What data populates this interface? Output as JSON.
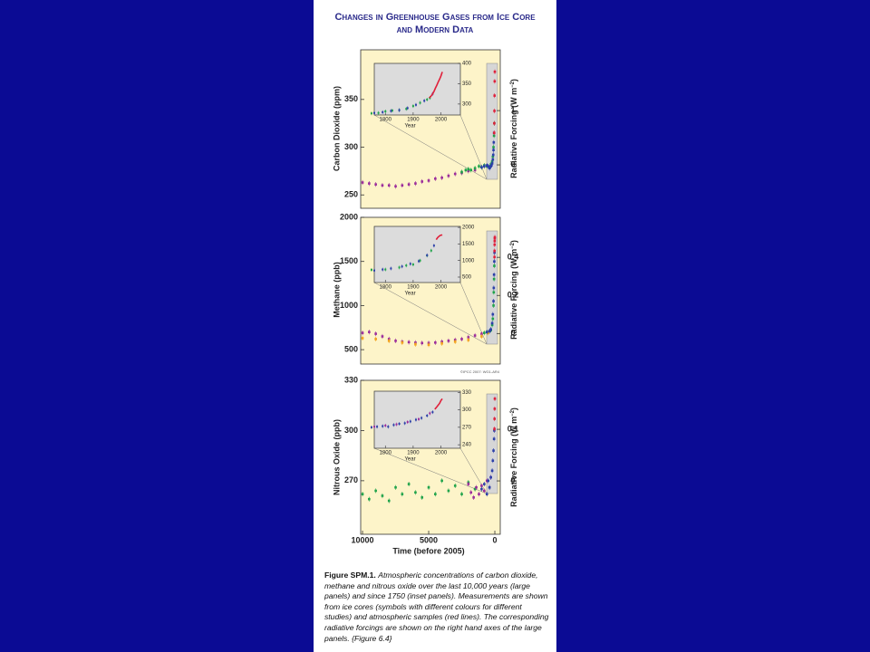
{
  "title_lines": [
    "Changes in Greenhouse Gases from Ice Core",
    "and Modern Data"
  ],
  "credit": "©IPCC 2007: WG1-AR4",
  "caption": {
    "label": "Figure SPM.1.",
    "text": "Atmospheric concentrations of carbon dioxide, methane and nitrous oxide over the last 10,000 years (large panels) and since 1750 (inset panels). Measurements are shown from ice cores (symbols with different colours for different studies) and atmospheric samples (red lines). The corresponding radiative forcings are shown on the right hand axes of the large panels.",
    "ref": "{Figure 6.4}"
  },
  "chart_data": [
    {
      "type": "scatter",
      "ylabel": "Carbon Dioxide (ppm)",
      "y2label": [
        "Radiative Forcing (W m",
        "−2",
        ")"
      ],
      "xlim": [
        10140,
        -410
      ],
      "ylim": [
        236,
        402
      ],
      "yticks": [
        250,
        300,
        350
      ],
      "y2lim": [
        -0.8,
        2.12
      ],
      "y2ticks": [
        0,
        1
      ],
      "series": [
        {
          "color": "#9b2c9b",
          "x": [
            10000,
            9500,
            9000,
            8500,
            8000,
            7500,
            7000,
            6500,
            6000,
            5500,
            5000,
            4500,
            4000,
            3500,
            3000,
            2500,
            2000,
            1500
          ],
          "values": [
            263,
            262,
            261,
            260,
            260,
            259,
            260,
            261,
            262,
            264,
            265,
            267,
            268,
            270,
            272,
            273,
            275,
            276
          ]
        },
        {
          "color": "#1fa34a",
          "x": [
            2500,
            2200,
            2000,
            1800,
            1500,
            1200,
            1000,
            800,
            600,
            400,
            300,
            200,
            150,
            100,
            60,
            40
          ],
          "values": [
            274,
            276,
            277,
            276,
            278,
            280,
            279,
            281,
            280,
            279,
            282,
            285,
            290,
            300,
            312,
            325
          ]
        },
        {
          "color": "#2b3fa8",
          "x": [
            1000,
            800,
            600,
            500,
            400,
            300,
            250,
            200,
            150,
            120,
            100,
            80,
            60
          ],
          "values": [
            279,
            280,
            281,
            280,
            278,
            280,
            281,
            283,
            287,
            292,
            297,
            305,
            315
          ]
        },
        {
          "color": "#e0203a",
          "x": [
            47,
            40,
            30,
            20,
            10,
            0
          ],
          "values": [
            315,
            325,
            338,
            354,
            369,
            379
          ]
        }
      ],
      "inset": {
        "type": "scatter",
        "xlabel": "Year",
        "xlim": [
          1760,
          2070
        ],
        "ylim": [
          273,
          400
        ],
        "xticks": [
          1800,
          1900,
          2000
        ],
        "yticks": [
          300,
          350,
          400
        ],
        "series": [
          {
            "color": "#1fa34a",
            "x": [
              1750,
              1775,
              1800,
              1825,
              1850,
              1875,
              1900,
              1925,
              1950,
              1960
            ],
            "values": [
              277,
              278,
              282,
              284,
              285,
              288,
              295,
              303,
              311,
              315
            ]
          },
          {
            "color": "#2b3fa8",
            "x": [
              1760,
              1790,
              1820,
              1850,
              1880,
              1910,
              1940,
              1970
            ],
            "values": [
              278,
              280,
              283,
              285,
              290,
              298,
              308,
              325
            ]
          },
          {
            "color": "#e0203a",
            "style": "line",
            "x": [
              1958,
              1965,
              1970,
              1975,
              1980,
              1985,
              1990,
              1995,
              2000,
              2005
            ],
            "values": [
              315,
              320,
              325,
              331,
              339,
              346,
              354,
              361,
              369,
              379
            ]
          }
        ]
      }
    },
    {
      "type": "scatter",
      "ylabel": "Methane (ppb)",
      "y2label": [
        "Radiative Forcing (W m",
        "−2",
        ")"
      ],
      "xlim": [
        10140,
        -410
      ],
      "ylim": [
        337,
        2000
      ],
      "yticks": [
        500,
        1000,
        1500,
        2000
      ],
      "y2lim": [
        -0.16,
        0.61
      ],
      "y2ticks": [
        0,
        0.2,
        0.4
      ],
      "series": [
        {
          "color": "#9b2c9b",
          "x": [
            10000,
            9500,
            9000,
            8500,
            8000,
            7500,
            7000,
            6500,
            6000,
            5500,
            5000,
            4500,
            4000,
            3500,
            3000,
            2500,
            2000,
            1500,
            1000
          ],
          "values": [
            690,
            700,
            680,
            650,
            620,
            600,
            590,
            585,
            580,
            575,
            575,
            580,
            590,
            600,
            610,
            620,
            640,
            660,
            680
          ]
        },
        {
          "color": "#f2a21e",
          "x": [
            10000,
            9000,
            8000,
            7000,
            6000,
            5000,
            4000,
            3000,
            2000,
            1000,
            500
          ],
          "values": [
            630,
            620,
            600,
            580,
            560,
            555,
            570,
            590,
            610,
            650,
            690
          ]
        },
        {
          "color": "#1fa34a",
          "x": [
            800,
            600,
            400,
            300,
            200,
            150,
            100,
            80,
            60,
            40
          ],
          "values": [
            690,
            700,
            710,
            720,
            780,
            850,
            1000,
            1150,
            1300,
            1450
          ]
        },
        {
          "color": "#2b3fa8",
          "x": [
            600,
            400,
            300,
            200,
            150,
            100,
            80,
            60,
            40,
            25
          ],
          "values": [
            700,
            710,
            730,
            800,
            900,
            1050,
            1200,
            1350,
            1500,
            1600
          ]
        },
        {
          "color": "#e0203a",
          "x": [
            25,
            20,
            15,
            10,
            5,
            0
          ],
          "values": [
            1550,
            1620,
            1690,
            1730,
            1760,
            1774
          ]
        }
      ],
      "inset": {
        "type": "scatter",
        "xlabel": "Year",
        "xlim": [
          1760,
          2070
        ],
        "ylim": [
          336,
          2030
        ],
        "xticks": [
          1800,
          1900,
          2000
        ],
        "yticks": [
          500,
          1000,
          1500,
          2000
        ],
        "series": [
          {
            "color": "#1fa34a",
            "x": [
              1750,
              1800,
              1850,
              1875,
              1900,
              1925,
              1950,
              1965
            ],
            "values": [
              720,
              730,
              790,
              850,
              880,
              1000,
              1150,
              1300
            ]
          },
          {
            "color": "#2b3fa8",
            "x": [
              1760,
              1790,
              1820,
              1860,
              1890,
              1920,
              1950,
              1975
            ],
            "values": [
              700,
              730,
              760,
              820,
              900,
              980,
              1160,
              1450
            ]
          },
          {
            "color": "#e0203a",
            "style": "line",
            "x": [
              1983,
              1988,
              1993,
              1998,
              2005
            ],
            "values": [
              1630,
              1690,
              1730,
              1760,
              1774
            ]
          }
        ]
      }
    },
    {
      "type": "scatter",
      "ylabel": "Nitrous Oxide (ppb)",
      "y2label": [
        "Radiative Forcing (W m",
        "−2",
        ")"
      ],
      "xlabel": "Time (before 2005)",
      "xlim": [
        10140,
        -410
      ],
      "xticks": [
        10000,
        5000,
        0
      ],
      "ylim": [
        238,
        330
      ],
      "yticks": [
        270,
        300,
        330
      ],
      "y2lim": [
        -0.1035,
        0.195
      ],
      "y2ticks": [
        0,
        0.1
      ],
      "series": [
        {
          "color": "#1fa34a",
          "x": [
            10000,
            9500,
            9000,
            8500,
            8000,
            7500,
            7000,
            6500,
            6000,
            5500,
            5000,
            4500,
            4000,
            3500,
            3000,
            2500,
            2000,
            1500
          ],
          "values": [
            262,
            259,
            264,
            261,
            258,
            266,
            262,
            268,
            263,
            260,
            266,
            262,
            270,
            264,
            267,
            262,
            269,
            265
          ]
        },
        {
          "color": "#9b2c9b",
          "x": [
            2000,
            1800,
            1600,
            1400,
            1200,
            1000,
            800,
            600,
            400,
            300
          ],
          "values": [
            268,
            263,
            260,
            266,
            262,
            267,
            264,
            270,
            266,
            272
          ]
        },
        {
          "color": "#2b3fa8",
          "x": [
            1000,
            800,
            600,
            500,
            400,
            300,
            200,
            150,
            100,
            60,
            40
          ],
          "values": [
            265,
            268,
            262,
            270,
            266,
            272,
            276,
            282,
            288,
            295,
            300
          ]
        },
        {
          "color": "#e0203a",
          "x": [
            27,
            20,
            10,
            0
          ],
          "values": [
            301,
            307,
            313,
            319
          ]
        }
      ],
      "inset": {
        "type": "scatter",
        "xlabel": "Year",
        "xlim": [
          1760,
          2070
        ],
        "ylim": [
          234,
          332
        ],
        "xticks": [
          1800,
          1900,
          2000
        ],
        "yticks": [
          240,
          270,
          300,
          330
        ],
        "series": [
          {
            "color": "#2b3fa8",
            "x": [
              1750,
              1770,
              1790,
              1810,
              1830,
              1850,
              1870,
              1890,
              1910,
              1930,
              1950,
              1970
            ],
            "values": [
              270,
              271,
              272,
              271,
              274,
              276,
              277,
              280,
              283,
              286,
              290,
              296
            ]
          },
          {
            "color": "#9b2c9b",
            "x": [
              1760,
              1800,
              1840,
              1880,
              1920,
              1960
            ],
            "values": [
              271,
              273,
              275,
              279,
              284,
              294
            ]
          },
          {
            "color": "#e0203a",
            "style": "line",
            "x": [
              1978,
              1985,
              1990,
              1995,
              2000,
              2005
            ],
            "values": [
              301,
              305,
              308,
              311,
              316,
              319
            ]
          }
        ]
      }
    }
  ]
}
